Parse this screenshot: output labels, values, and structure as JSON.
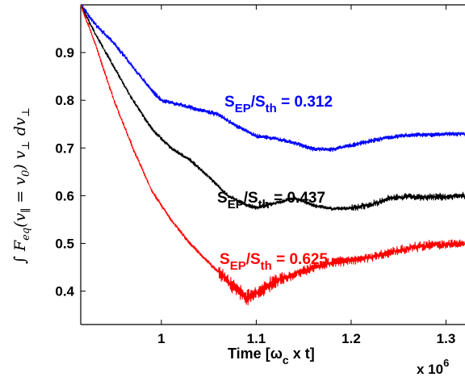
{
  "chart_data": {
    "type": "line",
    "xlabel_main": "Time [",
    "xlabel_omega": "ω",
    "xlabel_sub": "c",
    "xlabel_rest": " x t]",
    "ylabel_text": "∫F",
    "ylabel_parts": [
      "∫ F",
      "eq",
      "(v",
      "∥",
      " = v",
      "0",
      ") v",
      "⊥",
      " dv",
      "⊥"
    ],
    "x_multiplier_base": "x 10",
    "x_multiplier_exp": "6",
    "xlim": [
      0.915,
      1.32
    ],
    "ylim": [
      0.33,
      1.0
    ],
    "x_ticks": [
      1.0,
      1.1,
      1.2,
      1.3
    ],
    "x_tick_labels": [
      "1",
      "1.1",
      "1.2",
      "1.3"
    ],
    "y_ticks": [
      0.4,
      0.5,
      0.6,
      0.7,
      0.8,
      0.9
    ],
    "y_tick_labels": [
      "0.4",
      "0.5",
      "0.6",
      "0.7",
      "0.8",
      "0.9"
    ],
    "series": [
      {
        "color": "#0000ff",
        "label_main": "S",
        "label_sub1": "EP",
        "label_mid": "/S",
        "label_sub2": "th",
        "label_value": " = 0.312",
        "points": [
          [
            0.915,
            1.0
          ],
          [
            0.93,
            0.96
          ],
          [
            0.95,
            0.92
          ],
          [
            0.97,
            0.87
          ],
          [
            0.99,
            0.82
          ],
          [
            1.0,
            0.8
          ],
          [
            1.02,
            0.79
          ],
          [
            1.04,
            0.78
          ],
          [
            1.06,
            0.77
          ],
          [
            1.08,
            0.745
          ],
          [
            1.1,
            0.725
          ],
          [
            1.12,
            0.72
          ],
          [
            1.14,
            0.71
          ],
          [
            1.16,
            0.698
          ],
          [
            1.18,
            0.697
          ],
          [
            1.2,
            0.705
          ],
          [
            1.22,
            0.715
          ],
          [
            1.24,
            0.722
          ],
          [
            1.26,
            0.727
          ],
          [
            1.28,
            0.728
          ],
          [
            1.3,
            0.729
          ],
          [
            1.32,
            0.73
          ]
        ]
      },
      {
        "color": "#000000",
        "label_main": "S",
        "label_sub1": "EP",
        "label_mid": "/S",
        "label_sub2": "th",
        "label_value": " = 0.437",
        "points": [
          [
            0.915,
            1.0
          ],
          [
            0.93,
            0.94
          ],
          [
            0.95,
            0.87
          ],
          [
            0.97,
            0.8
          ],
          [
            0.99,
            0.74
          ],
          [
            1.01,
            0.7
          ],
          [
            1.03,
            0.675
          ],
          [
            1.05,
            0.64
          ],
          [
            1.07,
            0.6
          ],
          [
            1.09,
            0.58
          ],
          [
            1.1,
            0.575
          ],
          [
            1.12,
            0.585
          ],
          [
            1.14,
            0.595
          ],
          [
            1.16,
            0.58
          ],
          [
            1.18,
            0.572
          ],
          [
            1.2,
            0.575
          ],
          [
            1.22,
            0.58
          ],
          [
            1.24,
            0.595
          ],
          [
            1.26,
            0.598
          ],
          [
            1.28,
            0.597
          ],
          [
            1.3,
            0.598
          ],
          [
            1.32,
            0.6
          ]
        ]
      },
      {
        "color": "#ff0000",
        "label_main": "S",
        "label_sub1": "EP",
        "label_mid": "/S",
        "label_sub2": "th",
        "label_value": " = 0.625",
        "points": [
          [
            0.915,
            1.0
          ],
          [
            0.93,
            0.92
          ],
          [
            0.95,
            0.8
          ],
          [
            0.97,
            0.7
          ],
          [
            0.99,
            0.61
          ],
          [
            1.01,
            0.55
          ],
          [
            1.03,
            0.5
          ],
          [
            1.05,
            0.46
          ],
          [
            1.07,
            0.42
          ],
          [
            1.09,
            0.385
          ],
          [
            1.1,
            0.395
          ],
          [
            1.12,
            0.42
          ],
          [
            1.14,
            0.435
          ],
          [
            1.16,
            0.45
          ],
          [
            1.18,
            0.46
          ],
          [
            1.2,
            0.465
          ],
          [
            1.22,
            0.47
          ],
          [
            1.24,
            0.48
          ],
          [
            1.26,
            0.49
          ],
          [
            1.28,
            0.495
          ],
          [
            1.3,
            0.498
          ],
          [
            1.32,
            0.5
          ]
        ]
      }
    ]
  }
}
